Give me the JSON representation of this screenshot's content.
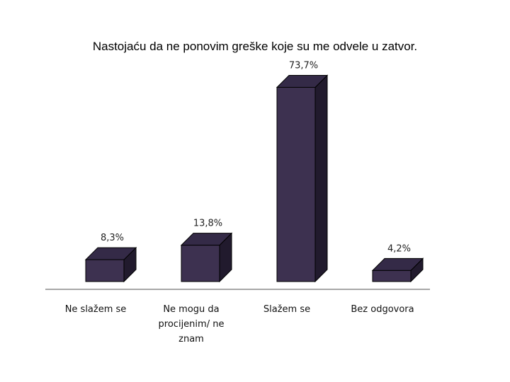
{
  "chart_data": {
    "type": "bar",
    "title": "Nastojaću da ne ponovim greške koje su me odvele u zatvor.",
    "categories": [
      [
        "Ne slažem se"
      ],
      [
        "Ne mogu da",
        "procijenim/ ne",
        "znam"
      ],
      [
        "Slažem se"
      ],
      [
        "Bez odgovora"
      ]
    ],
    "values": [
      8.3,
      13.8,
      73.7,
      4.2
    ],
    "value_labels": [
      "8,3%",
      "13,8%",
      "73,7%",
      "4,2%"
    ],
    "unit": "%",
    "ylim": [
      0,
      80
    ],
    "grid": false,
    "legend": "none",
    "colors": {
      "front": "#3d3150",
      "top": "#342a47",
      "side": "#211a2d",
      "edge": "#000000",
      "baseline": "#8a8a8a"
    }
  }
}
